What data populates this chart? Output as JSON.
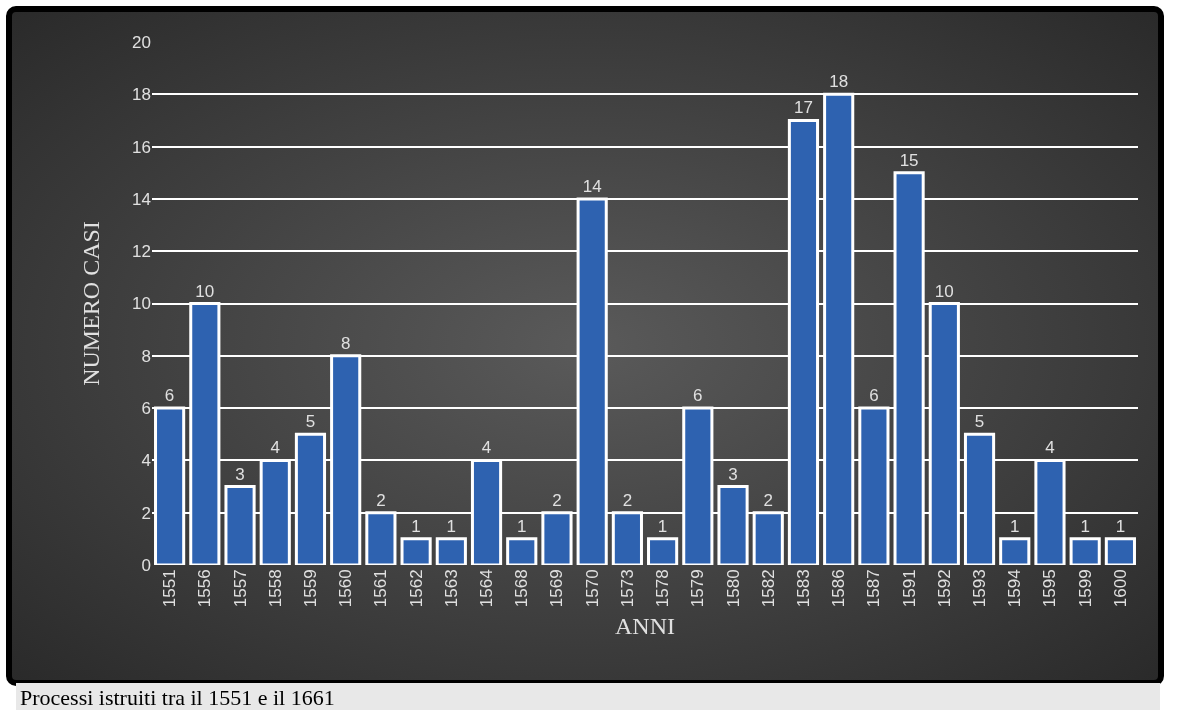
{
  "chart_data": {
    "type": "bar",
    "xlabel": "ANNI",
    "ylabel": "NUMERO CASI",
    "categories": [
      "1551",
      "1556",
      "1557",
      "1558",
      "1559",
      "1560",
      "1561",
      "1562",
      "1563",
      "1564",
      "1568",
      "1569",
      "1570",
      "1573",
      "1578",
      "1579",
      "1580",
      "1582",
      "1583",
      "1586",
      "1587",
      "1591",
      "1592",
      "1593",
      "1594",
      "1595",
      "1599",
      "1600"
    ],
    "values": [
      6,
      10,
      3,
      4,
      5,
      8,
      2,
      1,
      1,
      4,
      1,
      2,
      14,
      2,
      1,
      6,
      3,
      2,
      17,
      18,
      6,
      15,
      10,
      5,
      1,
      4,
      1,
      1
    ],
    "color": "#2e62b0",
    "ylim": [
      0,
      20
    ],
    "yticks": [
      0,
      2,
      4,
      6,
      8,
      10,
      12,
      14,
      16,
      18,
      20
    ],
    "grid": "y",
    "data_labels": true,
    "annotations": [
      "Processi istruiti tra il 1551 e il 1661"
    ]
  }
}
